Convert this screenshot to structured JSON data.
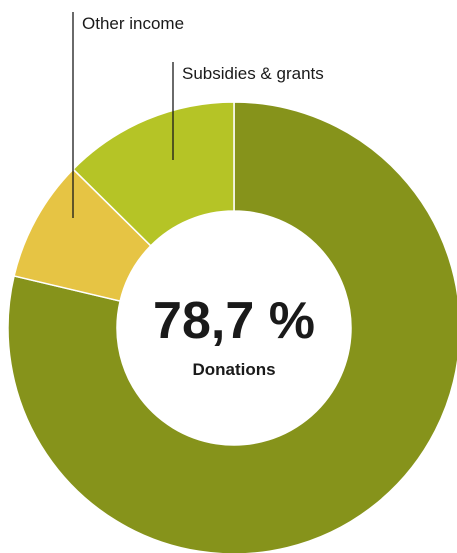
{
  "chart_data": {
    "type": "pie",
    "style": "donut",
    "slices": [
      {
        "label": "Donations",
        "value": 78.7,
        "color": "#86931b"
      },
      {
        "label": "Other income",
        "value": 8.7,
        "color": "#e6c444"
      },
      {
        "label": "Subsidies & grants",
        "value": 12.6,
        "color": "#b5c426"
      }
    ],
    "center": {
      "value_text": "78,7 %",
      "label": "Donations"
    },
    "start_angle_deg": 0,
    "direction": "clockwise"
  }
}
